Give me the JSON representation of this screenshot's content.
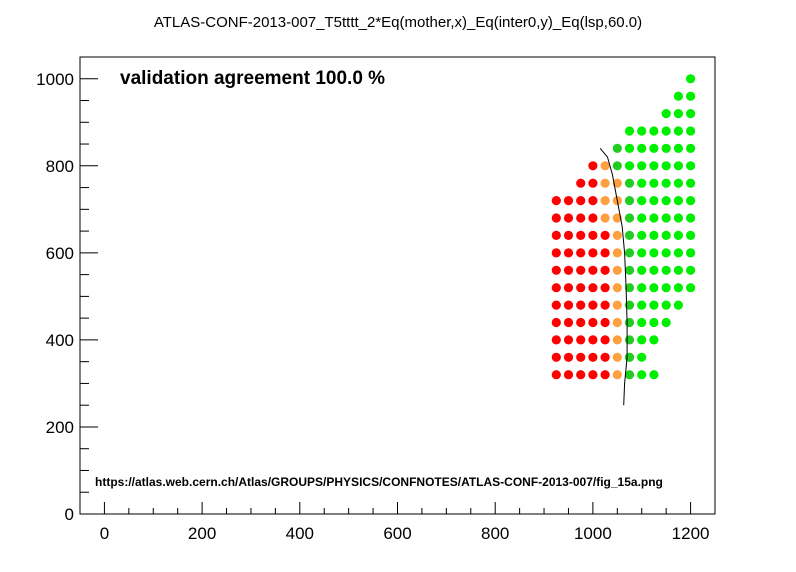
{
  "chart_data": {
    "type": "scatter",
    "title": "ATLAS-CONF-2013-007_T5tttt_2*Eq(mother,x)_Eq(inter0,y)_Eq(lsp,60.0)",
    "annotation": "validation agreement 100.0 %",
    "source_url": "https://atlas.web.cern.ch/Atlas/GROUPS/PHYSICS/CONFNOTES/ATLAS-CONF-2013-007/fig_15a.png",
    "xlabel": "",
    "ylabel": "",
    "xlim": [
      -50,
      1250
    ],
    "ylim": [
      0,
      1050
    ],
    "x_ticks": [
      0,
      200,
      400,
      600,
      800,
      1000,
      1200
    ],
    "y_ticks": [
      0,
      200,
      400,
      600,
      800,
      1000
    ],
    "grid": false,
    "colors": {
      "excluded": "#ff0000",
      "excluded_boundary": "#ffa040",
      "allowed_boundary": "#22cc22",
      "allowed": "#00ee00",
      "curve": "#000000"
    },
    "grid_step_x": 25,
    "rows": [
      {
        "y": 320,
        "red": [
          925,
          1025
        ],
        "orange": [
          1050,
          1050
        ],
        "dkgreen": [
          1075,
          1075
        ],
        "green": [
          1100,
          1125
        ]
      },
      {
        "y": 360,
        "red": [
          925,
          1025
        ],
        "orange": [
          1050,
          1050
        ],
        "dkgreen": [
          1075,
          1075
        ],
        "green": [
          1075,
          1100
        ]
      },
      {
        "y": 400,
        "red": [
          925,
          1025
        ],
        "orange": [
          1050,
          1050
        ],
        "dkgreen": [
          1075,
          1075
        ],
        "green": [
          1100,
          1125
        ]
      },
      {
        "y": 440,
        "red": [
          925,
          1025
        ],
        "orange": [
          1050,
          1050
        ],
        "dkgreen": [
          1075,
          1075
        ],
        "green": [
          1100,
          1150
        ]
      },
      {
        "y": 480,
        "red": [
          925,
          1025
        ],
        "orange": [
          1050,
          1050
        ],
        "dkgreen": [
          1075,
          1075
        ],
        "green": [
          1100,
          1175
        ]
      },
      {
        "y": 520,
        "red": [
          925,
          1025
        ],
        "orange": [
          1050,
          1050
        ],
        "dkgreen": [
          1075,
          1075
        ],
        "green": [
          1100,
          1200
        ]
      },
      {
        "y": 560,
        "red": [
          925,
          1025
        ],
        "orange": [
          1050,
          1050
        ],
        "dkgreen": [
          1075,
          1075
        ],
        "green": [
          1100,
          1200
        ]
      },
      {
        "y": 600,
        "red": [
          925,
          1025
        ],
        "orange": [
          1050,
          1050
        ],
        "dkgreen": [
          1075,
          1075
        ],
        "green": [
          1100,
          1200
        ]
      },
      {
        "y": 640,
        "red": [
          925,
          1025
        ],
        "orange": [
          1050,
          1050
        ],
        "dkgreen": [
          1075,
          1075
        ],
        "green": [
          1100,
          1200
        ]
      },
      {
        "y": 680,
        "red": [
          925,
          1000
        ],
        "orange": [
          1025,
          1050
        ],
        "dkgreen": [
          1075,
          1075
        ],
        "green": [
          1100,
          1200
        ]
      },
      {
        "y": 720,
        "red": [
          925,
          1000
        ],
        "orange": [
          1025,
          1050
        ],
        "dkgreen": [
          1075,
          1075
        ],
        "green": [
          1100,
          1200
        ]
      },
      {
        "y": 760,
        "red": [
          975,
          1000
        ],
        "orange": [
          1025,
          1050
        ],
        "dkgreen": [
          1075,
          1075
        ],
        "green": [
          1100,
          1200
        ]
      },
      {
        "y": 800,
        "red": [
          1000,
          1000
        ],
        "orange": [
          1025,
          1025
        ],
        "dkgreen": [
          1050,
          1050
        ],
        "green": [
          1075,
          1200
        ]
      },
      {
        "y": 840,
        "dkgreen": [
          1050,
          1050
        ],
        "green": [
          1075,
          1200
        ]
      },
      {
        "y": 880,
        "green": [
          1075,
          1200
        ]
      },
      {
        "y": 920,
        "green": [
          1150,
          1200
        ]
      },
      {
        "y": 960,
        "green": [
          1175,
          1200
        ]
      },
      {
        "y": 1000,
        "green": [
          1200,
          1200
        ]
      }
    ],
    "contour": [
      [
        1015,
        840
      ],
      [
        1030,
        820
      ],
      [
        1040,
        780
      ],
      [
        1050,
        720
      ],
      [
        1060,
        660
      ],
      [
        1065,
        600
      ],
      [
        1068,
        520
      ],
      [
        1070,
        440
      ],
      [
        1070,
        360
      ],
      [
        1065,
        300
      ],
      [
        1063,
        250
      ]
    ]
  }
}
